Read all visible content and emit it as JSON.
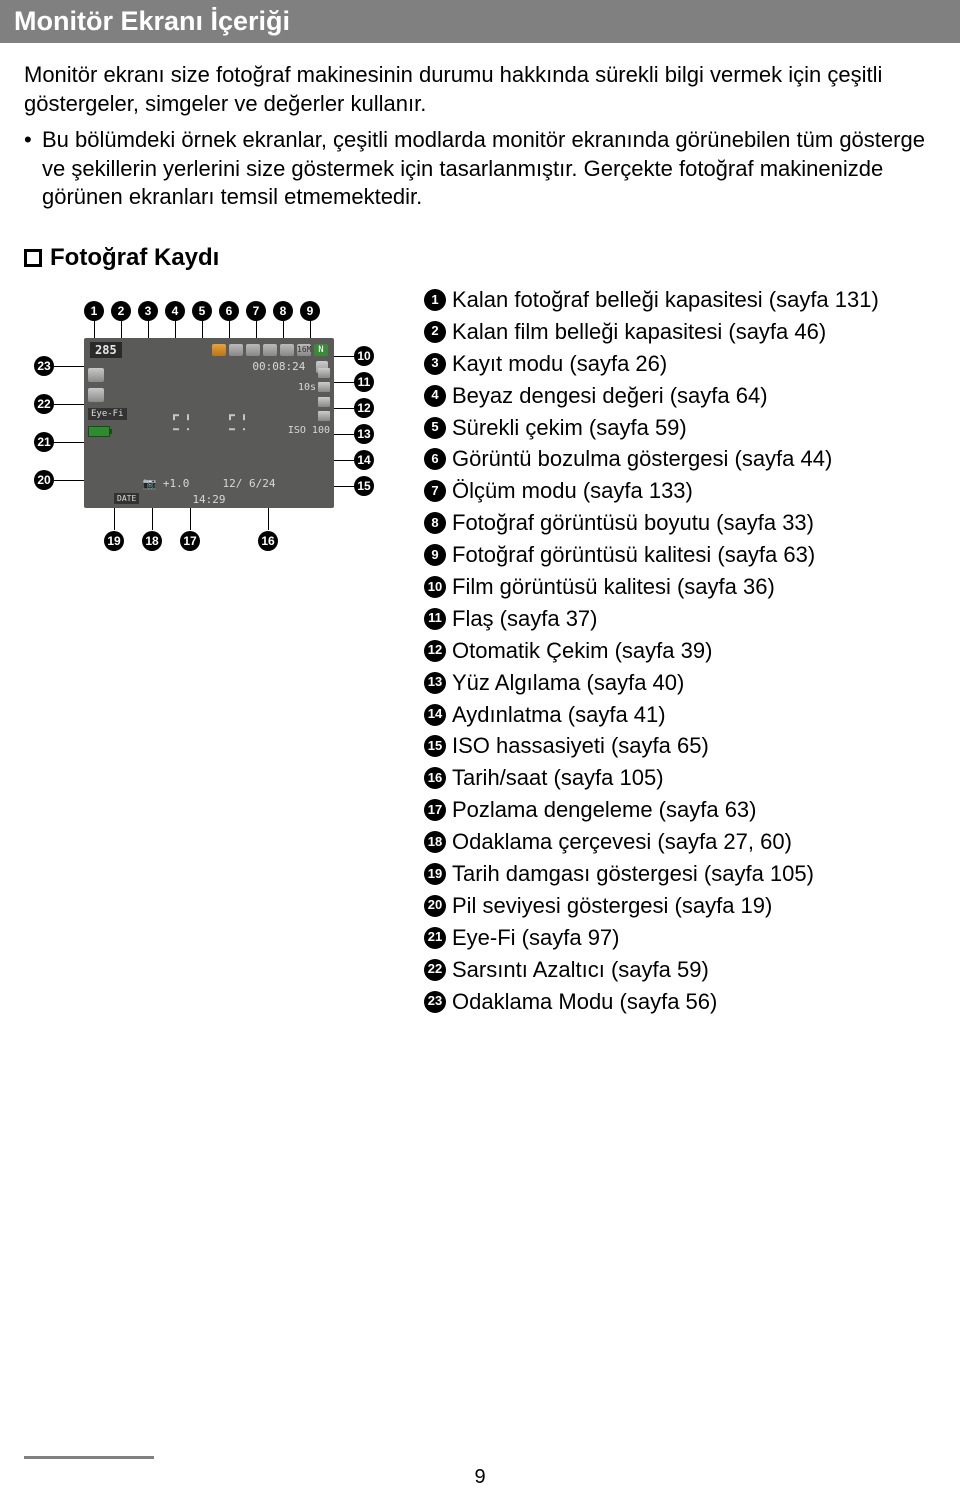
{
  "header": "Monitör Ekranı İçeriği",
  "intro_p1": "Monitör ekranı size fotoğraf makinesinin durumu hakkında sürekli bilgi vermek için çeşitli göstergeler, simgeler ve değerler kullanır.",
  "intro_bullet": "Bu bölümdeki örnek ekranlar, çeşitli modlarda monitör ekranında görünebilen tüm gösterge ve şekillerin yerlerini size göstermek için tasarlanmıştır. Gerçekte fotoğraf makinenizde görünen ekranları temsil etmemektedir.",
  "subheading": "Fotoğraf Kaydı",
  "legend": [
    {
      "n": "1",
      "t": "Kalan fotoğraf belleği kapasitesi (sayfa 131)"
    },
    {
      "n": "2",
      "t": "Kalan film belleği kapasitesi (sayfa 46)"
    },
    {
      "n": "3",
      "t": "Kayıt modu (sayfa 26)"
    },
    {
      "n": "4",
      "t": "Beyaz dengesi değeri (sayfa 64)"
    },
    {
      "n": "5",
      "t": "Sürekli çekim (sayfa 59)"
    },
    {
      "n": "6",
      "t": "Görüntü bozulma göstergesi (sayfa 44)"
    },
    {
      "n": "7",
      "t": "Ölçüm modu (sayfa 133)"
    },
    {
      "n": "8",
      "t": "Fotoğraf görüntüsü boyutu (sayfa 33)"
    },
    {
      "n": "9",
      "t": "Fotoğraf görüntüsü kalitesi (sayfa 63)"
    },
    {
      "n": "10",
      "t": "Film görüntüsü kalitesi (sayfa 36)"
    },
    {
      "n": "11",
      "t": "Flaş (sayfa 37)"
    },
    {
      "n": "12",
      "t": "Otomatik Çekim (sayfa 39)"
    },
    {
      "n": "13",
      "t": "Yüz Algılama (sayfa 40)"
    },
    {
      "n": "14",
      "t": "Aydınlatma (sayfa 41)"
    },
    {
      "n": "15",
      "t": "ISO hassasiyeti (sayfa 65)"
    },
    {
      "n": "16",
      "t": "Tarih/saat (sayfa 105)"
    },
    {
      "n": "17",
      "t": "Pozlama dengeleme (sayfa 63)"
    },
    {
      "n": "18",
      "t": "Odaklama çerçevesi (sayfa 27, 60)"
    },
    {
      "n": "19",
      "t": "Tarih damgası göstergesi (sayfa 105)"
    },
    {
      "n": "20",
      "t": "Pil seviyesi göstergesi (sayfa 19)"
    },
    {
      "n": "21",
      "t": "Eye-Fi (sayfa 97)"
    },
    {
      "n": "22",
      "t": "Sarsıntı Azaltıcı (sayfa 59)"
    },
    {
      "n": "23",
      "t": "Odaklama Modu (sayfa 56)"
    }
  ],
  "lcd": {
    "count": "285",
    "rectime": "00:08:24",
    "iso": "ISO 100",
    "date": "12/ 6/24",
    "time": "14:29",
    "ev": "+1.0",
    "eyefi": "Eye-Fi",
    "s10": "10s",
    "quality": "N",
    "size": "16M",
    "date_stamp": "DATE"
  },
  "top_nums": [
    "1",
    "2",
    "3",
    "4",
    "5",
    "6",
    "7",
    "8",
    "9"
  ],
  "right_nums_start": 10,
  "right_nums": [
    "10",
    "11",
    "12",
    "13",
    "14",
    "15"
  ],
  "left_nums": [
    "23",
    "22",
    "21",
    "20"
  ],
  "bottom_nums": [
    "19",
    "18",
    "17",
    "16"
  ],
  "page_number": "9",
  "colors": {
    "header_bg": "#808080",
    "header_fg": "#ffffff",
    "text": "#000000",
    "lcd_bg": "#5a5a58",
    "lcd_fg": "#d8d8d8"
  }
}
